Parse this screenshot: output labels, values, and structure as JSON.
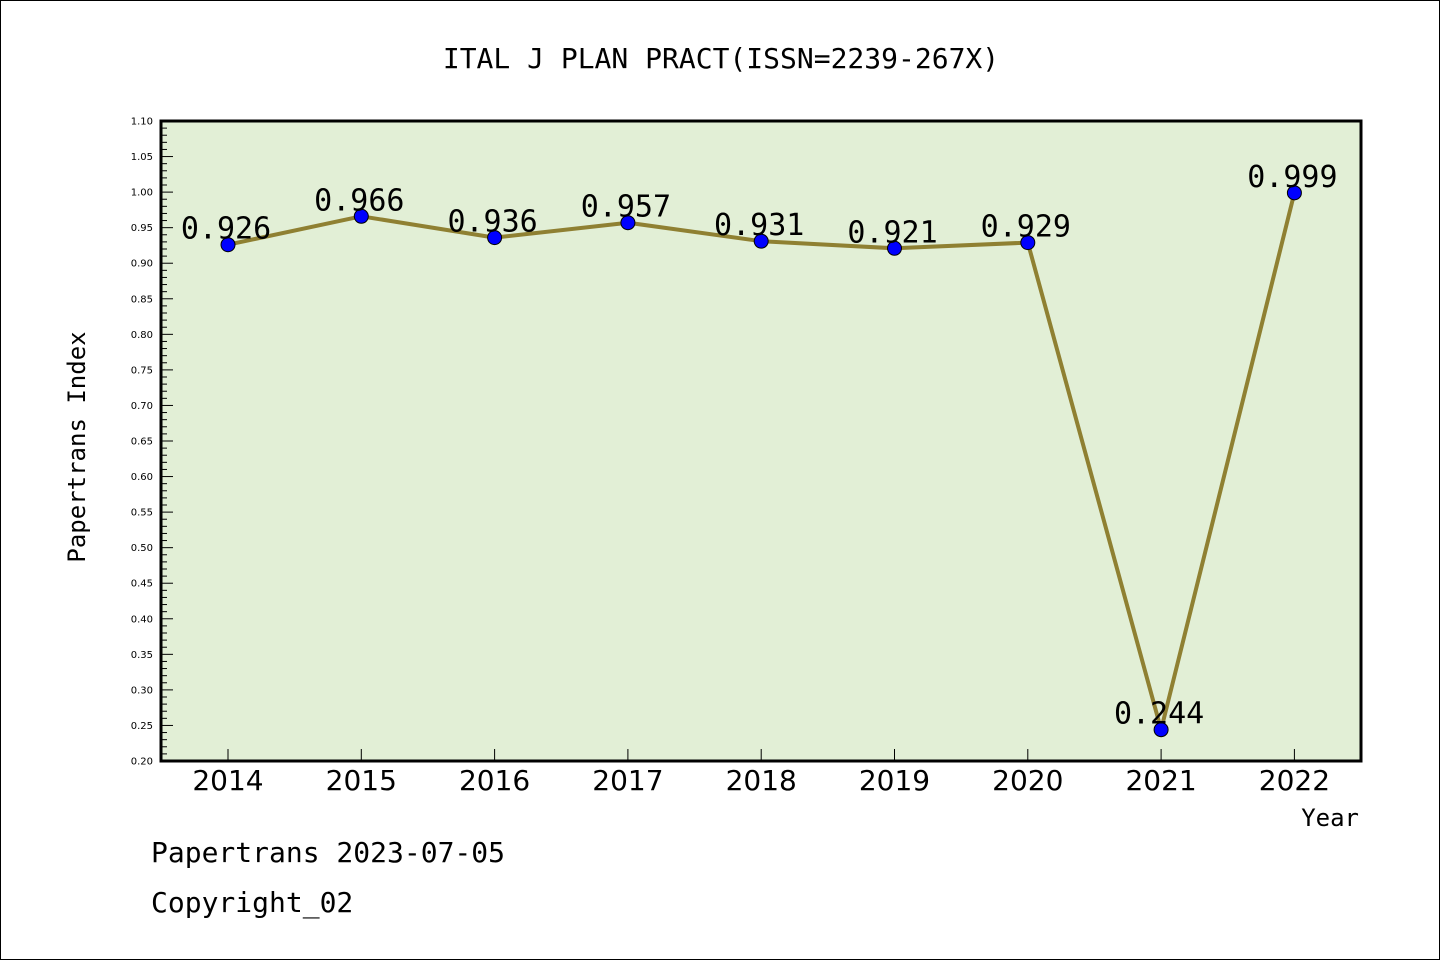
{
  "chart_data": {
    "type": "line",
    "title": "ITAL J PLAN PRACT(ISSN=2239-267X)",
    "xlabel": "Year",
    "ylabel": "Papertrans Index",
    "x": [
      "2014",
      "2015",
      "2016",
      "2017",
      "2018",
      "2019",
      "2020",
      "2021",
      "2022"
    ],
    "series": [
      {
        "values": [
          0.926,
          0.966,
          0.936,
          0.957,
          0.931,
          0.921,
          0.929,
          0.244,
          0.999
        ],
        "labels": [
          "0.926",
          "0.966",
          "0.936",
          "0.957",
          "0.931",
          "0.921",
          "0.929",
          "0.244",
          "0.999"
        ]
      }
    ],
    "ylim": [
      0.2,
      1.1
    ],
    "yticks": [
      "0.20",
      "0.25",
      "0.30",
      "0.35",
      "0.40",
      "0.45",
      "0.50",
      "0.55",
      "0.60",
      "0.65",
      "0.70",
      "0.75",
      "0.80",
      "0.85",
      "0.90",
      "0.95",
      "1.00",
      "1.05",
      "1.10"
    ],
    "grid": false,
    "legend": "none",
    "colors": {
      "plot_background": "#e2efd6",
      "line": "#8f8032",
      "marker": "#0000ff",
      "frame": "#000000"
    }
  },
  "footer": {
    "line1": "Papertrans 2023-07-05",
    "line2": "Copyright_02"
  }
}
